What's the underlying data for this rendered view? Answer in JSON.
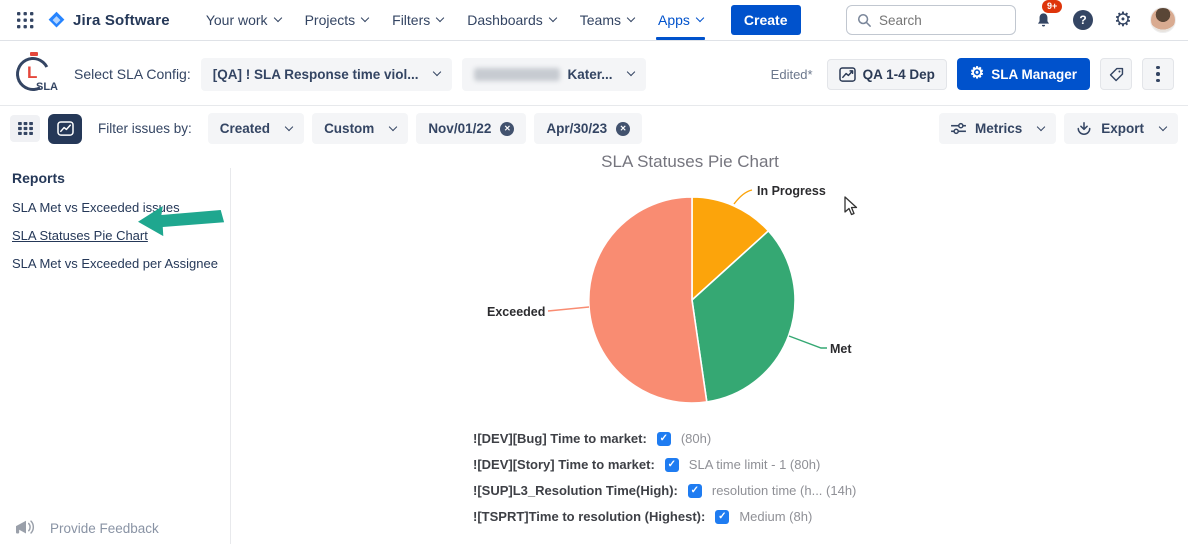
{
  "nav": {
    "app_title": "Jira Software",
    "items": [
      {
        "label": "Your work"
      },
      {
        "label": "Projects"
      },
      {
        "label": "Filters"
      },
      {
        "label": "Dashboards"
      },
      {
        "label": "Teams"
      },
      {
        "label": "Apps",
        "active": true
      }
    ],
    "create_label": "Create",
    "search_placeholder": "Search",
    "notification_badge": "9+",
    "help_glyph": "?"
  },
  "config_bar": {
    "logo_letter": "L",
    "logo_text": "SLA",
    "select_label": "Select SLA Config:",
    "config_dropdown_value": "[QA] ! SLA Response time viol...",
    "user_dropdown_value": "Kater...",
    "edited_label": "Edited*",
    "qa_button_label": "QA 1-4 Dep",
    "sla_manager_label": "SLA Manager"
  },
  "filter_bar": {
    "label": "Filter issues by:",
    "created_dropdown": "Created",
    "custom_dropdown": "Custom",
    "date_from": "Nov/01/22",
    "date_to": "Apr/30/23",
    "metrics_label": "Metrics",
    "export_label": "Export"
  },
  "sidebar": {
    "heading": "Reports",
    "items": [
      {
        "label": "SLA Met vs Exceeded issues",
        "active": false
      },
      {
        "label": "SLA Statuses Pie Chart",
        "active": true
      },
      {
        "label": "SLA Met vs Exceeded per Assignee",
        "active": false
      }
    ]
  },
  "chart_data": {
    "type": "pie",
    "title": "SLA Statuses Pie Chart",
    "start_angle_deg": 0,
    "direction": "clockwise",
    "legend_position": "outside-labels",
    "slices": [
      {
        "label": "In Progress",
        "percent": 13.3,
        "color": "#FCA40B"
      },
      {
        "label": "Met",
        "percent": 34.4,
        "color": "#35A873"
      },
      {
        "label": "Exceeded",
        "percent": 52.3,
        "color": "#F98C72"
      }
    ]
  },
  "sla_settings": {
    "rows": [
      {
        "label": "![DEV][Bug] Time to market:",
        "checked": true,
        "value": "(80h)"
      },
      {
        "label": "![DEV][Story] Time to market:",
        "checked": true,
        "value": "SLA time limit - 1 (80h)"
      },
      {
        "label": "![SUP]L3_Resolution Time(High):",
        "checked": true,
        "value": "resolution time (h... (14h)"
      },
      {
        "label": "![TSPRT]Time to resolution (Highest):",
        "checked": true,
        "value": "Medium (8h)"
      }
    ]
  },
  "footer": {
    "feedback_label": "Provide Feedback"
  },
  "colors": {
    "primary_blue": "#0052CC",
    "dark_navy": "#253858",
    "annotation_arrow": "#1FA78F",
    "badge_red": "#DE350B",
    "checkbox_blue": "#1F7CF1"
  }
}
